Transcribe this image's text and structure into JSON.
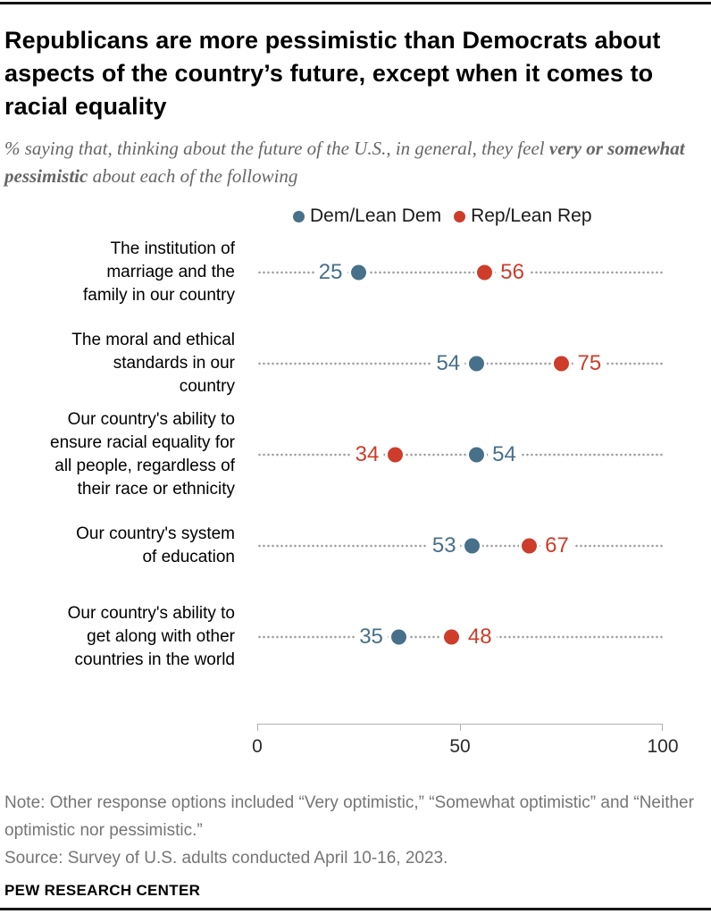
{
  "header": {
    "title": "Republicans are more pessimistic than Democrats about aspects of the country’s future, except when it comes to racial equality",
    "subtitle_prefix": "% saying that, thinking about the future of the U.S., in general, they feel ",
    "subtitle_bold": "very or somewhat pessimistic",
    "subtitle_suffix": " about each of the following"
  },
  "legend": {
    "items": [
      {
        "label": "Dem/Lean Dem",
        "color": "#47708a"
      },
      {
        "label": "Rep/Lean Rep",
        "color": "#cd3d29"
      }
    ]
  },
  "chart_data": {
    "type": "scatter",
    "title": "Republicans are more pessimistic than Democrats about aspects of the country’s future, except when it comes to racial equality",
    "categories": [
      "The institution of\nmarriage and the\nfamily in our country",
      "The moral and ethical\nstandards in our\ncountry",
      "Our country's ability to\nensure racial equality for\nall people, regardless of\ntheir race or ethnicity",
      "Our country's system\nof education",
      "Our country's ability to\nget along with other\ncountries in the world"
    ],
    "series": [
      {
        "name": "Dem/Lean Dem",
        "color": "#47708a",
        "values": [
          25,
          54,
          54,
          53,
          35
        ]
      },
      {
        "name": "Rep/Lean Rep",
        "color": "#cd3d29",
        "values": [
          56,
          75,
          34,
          67,
          48
        ]
      }
    ],
    "xlim": [
      0,
      100
    ],
    "x_ticks": [
      "0",
      "50",
      "100"
    ],
    "legend_position": "top",
    "grid": "dotted-leader-lines",
    "leader_dot_color": "#9e9e9e",
    "axis_color": "#b3b3b3"
  },
  "footer": {
    "note": "Note: Other response options included “Very optimistic,” “Somewhat optimistic” and “Neither optimistic nor pessimistic.”",
    "source": "Source: Survey of U.S. adults conducted April 10-16, 2023.",
    "brand": "PEW RESEARCH CENTER"
  }
}
